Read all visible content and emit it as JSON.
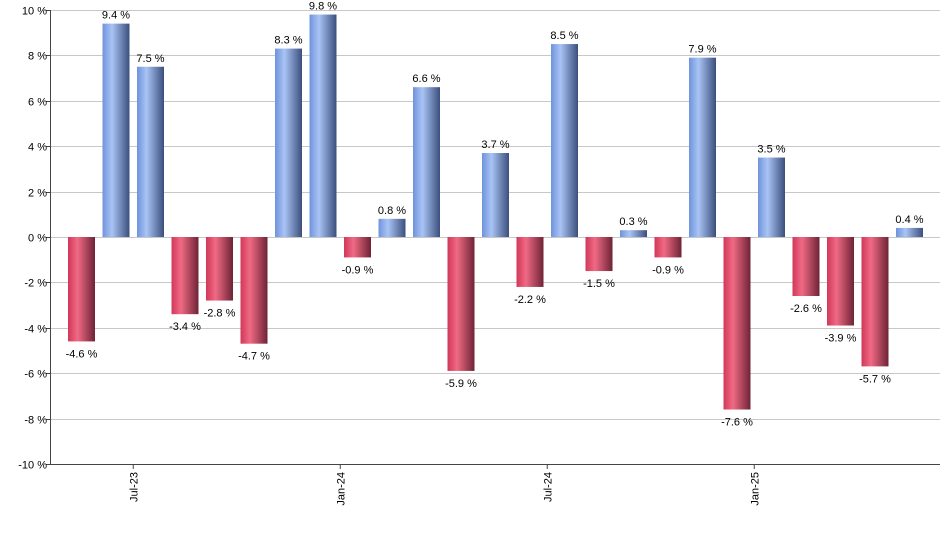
{
  "chart_data": {
    "type": "bar",
    "title": "",
    "xlabel": "",
    "ylabel": "",
    "ylim": [
      -10,
      10
    ],
    "y_ticks": [
      10,
      8,
      6,
      4,
      2,
      0,
      -2,
      -4,
      -6,
      -8,
      -10
    ],
    "y_tick_suffix": " %",
    "grid": true,
    "x_tick_labels": [
      {
        "label": "Jul-23",
        "index": 1.5
      },
      {
        "label": "Jan-24",
        "index": 7.5
      },
      {
        "label": "Jul-24",
        "index": 13.5
      },
      {
        "label": "Jan-25",
        "index": 19.5
      }
    ],
    "values": [
      -4.6,
      9.4,
      7.5,
      -3.4,
      -2.8,
      -4.7,
      8.3,
      9.8,
      -0.9,
      0.8,
      6.6,
      -5.9,
      3.7,
      -2.2,
      8.5,
      -1.5,
      0.3,
      -0.9,
      7.9,
      -7.6,
      3.5,
      -2.6,
      -3.9,
      -5.7,
      0.4
    ],
    "value_labels": [
      "-4.6 %",
      "9.4 %",
      "7.5 %",
      "-3.4 %",
      "-2.8 %",
      "-4.7 %",
      "8.3 %",
      "9.8 %",
      "-0.9 %",
      "0.8 %",
      "6.6 %",
      "-5.9 %",
      "3.7 %",
      "-2.2 %",
      "8.5 %",
      "-1.5 %",
      "0.3 %",
      "-0.9 %",
      "7.9 %",
      "-7.6 %",
      "3.5 %",
      "-2.6 %",
      "-3.9 %",
      "-5.7 %",
      "0.4 %"
    ],
    "colors": {
      "positive_light": "#a9c4f5",
      "positive_mid": "#6f93dc",
      "positive_dark": "#3b4f7d",
      "negative_light": "#f06a84",
      "negative_mid": "#d1375a",
      "negative_dark": "#6e2336",
      "grid": "#c8c8c8",
      "axis": "#444444"
    }
  }
}
